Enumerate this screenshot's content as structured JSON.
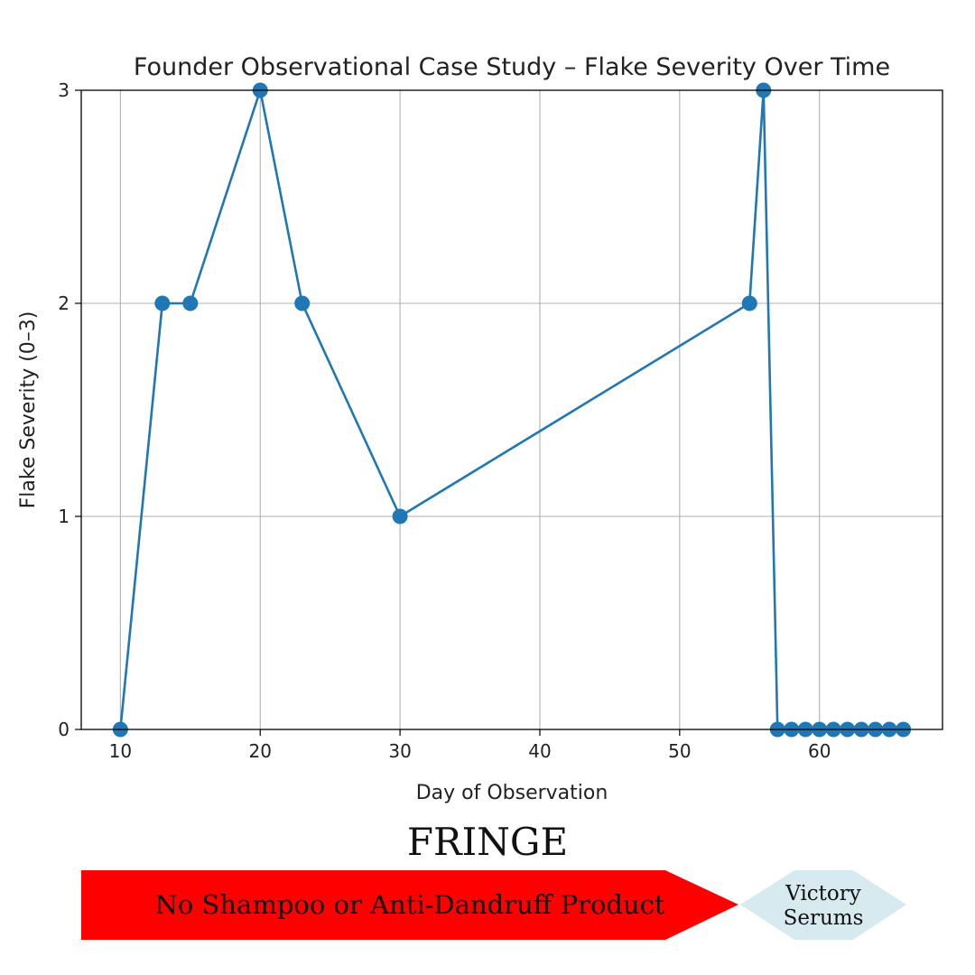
{
  "chart_data": {
    "type": "line",
    "title": "Founder Observational Case Study – Flake Severity Over Time",
    "xlabel": "Day of Observation",
    "ylabel": "Flake Severity (0–3)",
    "xlim": [
      7.2,
      68.8
    ],
    "ylim": [
      0,
      3
    ],
    "xticks": [
      10,
      20,
      30,
      40,
      50,
      60
    ],
    "yticks": [
      0,
      1,
      2,
      3
    ],
    "grid": true,
    "series": [
      {
        "name": "Flake Severity",
        "color": "#1f77b4",
        "marker": "circle",
        "x": [
          10,
          13,
          15,
          20,
          23,
          30,
          55,
          56,
          57,
          58,
          59,
          60,
          61,
          62,
          63,
          64,
          65,
          66
        ],
        "y": [
          0,
          2,
          2,
          3,
          2,
          1,
          2,
          3,
          0,
          0,
          0,
          0,
          0,
          0,
          0,
          0,
          0,
          0
        ]
      }
    ]
  },
  "brand": "FRINGE",
  "phases": {
    "phase1": {
      "label": "No Shampoo or Anti-Dandruff Product",
      "color": "#ff0000"
    },
    "phase2": {
      "line1": "Victory",
      "line2": "Serums",
      "color": "#d6eaf0"
    }
  }
}
